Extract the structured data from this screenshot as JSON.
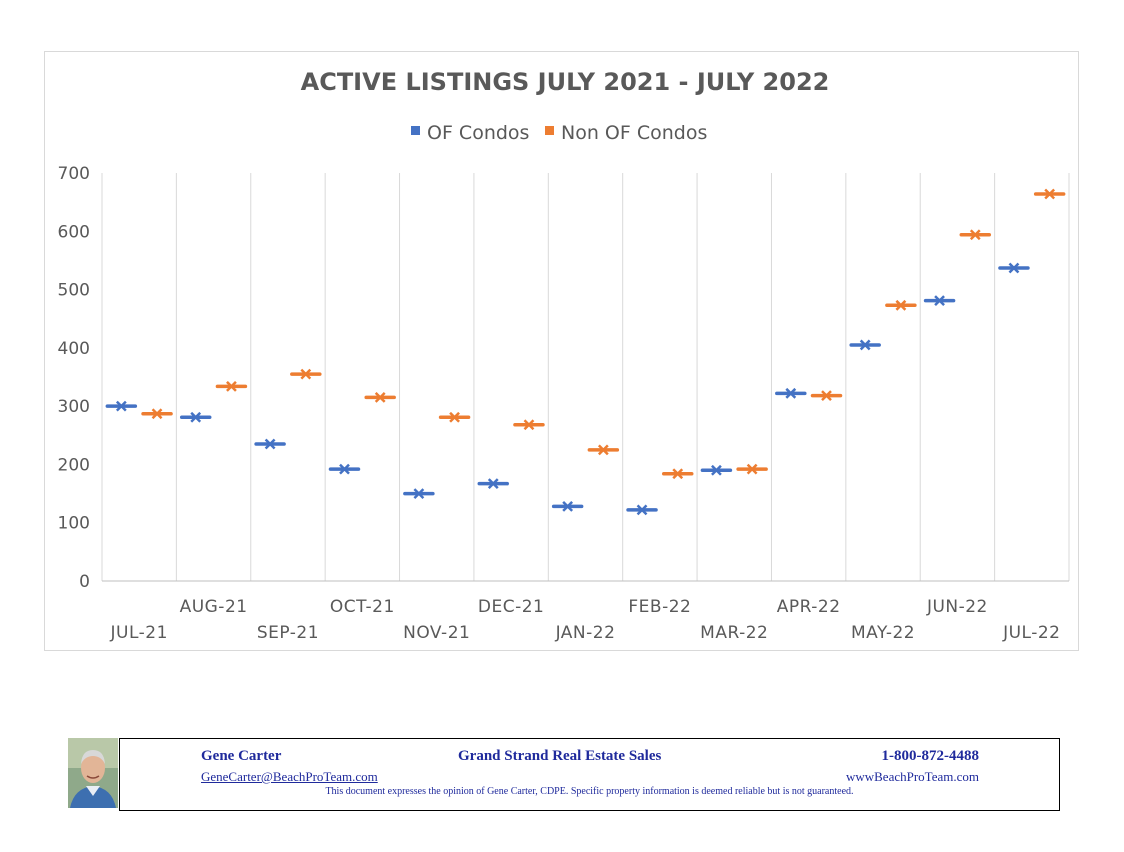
{
  "chart_data": {
    "type": "scatter",
    "title": "ACTIVE LISTINGS  JULY 2021 - JULY 2022",
    "xlabel": "",
    "ylabel": "",
    "ylim": [
      0,
      700
    ],
    "yticks": [
      0,
      100,
      200,
      300,
      400,
      500,
      600,
      700
    ],
    "grid": "vertical",
    "legend_position": "top",
    "categories": [
      "JUL-21",
      "AUG-21",
      "SEP-21",
      "OCT-21",
      "NOV-21",
      "DEC-21",
      "JAN-22",
      "FEB-22",
      "MAR-22",
      "APR-22",
      "MAY-22",
      "JUN-22",
      "JUL-22"
    ],
    "series": [
      {
        "name": "OF Condos",
        "color": "#4472c4",
        "values": [
          300,
          281,
          235,
          192,
          150,
          167,
          128,
          122,
          190,
          322,
          405,
          481,
          537
        ]
      },
      {
        "name": "Non OF Condos",
        "color": "#ed7d31",
        "values": [
          287,
          334,
          355,
          315,
          281,
          268,
          225,
          184,
          192,
          318,
          473,
          594,
          664
        ]
      }
    ]
  },
  "footer": {
    "name": "Gene Carter",
    "company": "Grand Strand Real Estate Sales",
    "phone": "1-800-872-4488",
    "email": "GeneCarter@BeachProTeam.com",
    "website": "wwwBeachProTeam.com",
    "disclaimer": "This document expresses the opinion of Gene Carter, CDPE.  Specific property information is deemed reliable but is not guaranteed."
  }
}
